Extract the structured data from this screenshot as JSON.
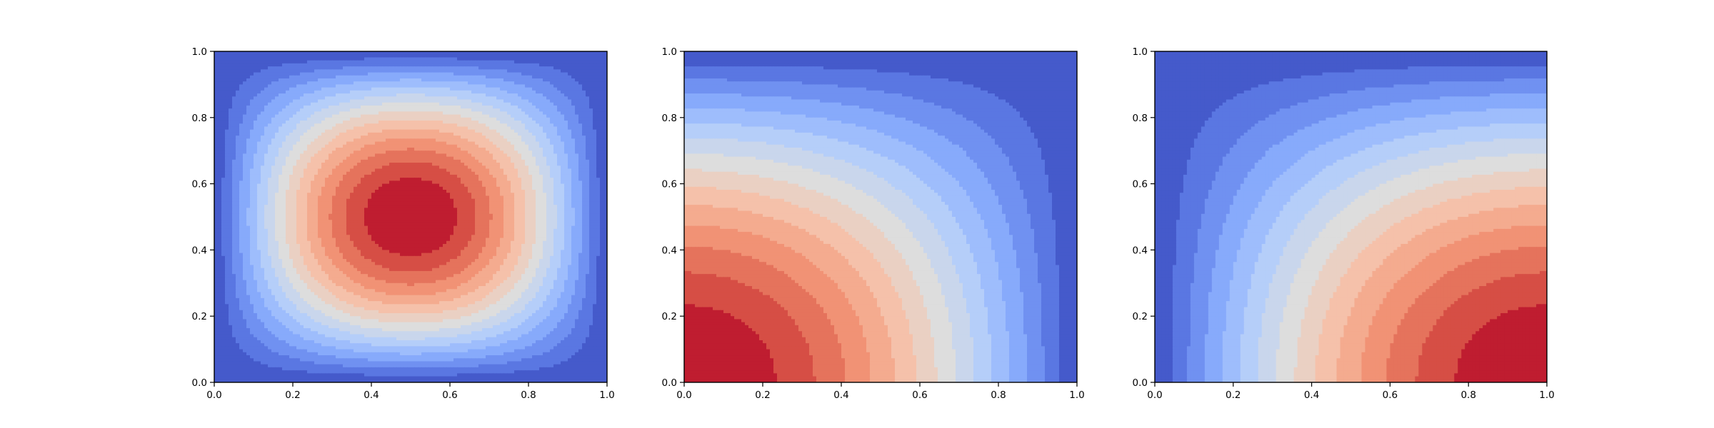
{
  "chart_data": [
    {
      "type": "heatmap",
      "subtype": "filled-contour",
      "title": "",
      "xlabel": "",
      "ylabel": "",
      "xlim": [
        0,
        1
      ],
      "ylim": [
        0,
        1
      ],
      "xticks": [
        "0.0",
        "0.2",
        "0.4",
        "0.6",
        "0.8",
        "1.0"
      ],
      "yticks": [
        "0.0",
        "0.2",
        "0.4",
        "0.6",
        "0.8",
        "1.0"
      ],
      "colormap": "coolwarm",
      "levels": 15,
      "pattern": "circular peak at center",
      "peak": [
        0.5,
        0.5
      ],
      "low_corners": [
        [
          0,
          0
        ],
        [
          0,
          1
        ],
        [
          1,
          0
        ],
        [
          1,
          1
        ]
      ],
      "grid": false
    },
    {
      "type": "heatmap",
      "subtype": "filled-contour",
      "title": "",
      "xlabel": "",
      "ylabel": "",
      "xlim": [
        0,
        1
      ],
      "ylim": [
        0,
        1
      ],
      "xticks": [
        "0.0",
        "0.2",
        "0.4",
        "0.6",
        "0.8",
        "1.0"
      ],
      "yticks": [
        "0.0",
        "0.2",
        "0.4",
        "0.6",
        "0.8",
        "1.0"
      ],
      "colormap": "coolwarm",
      "levels": 15,
      "pattern": "diagonal gradient, high at bottom-left, low at top-right",
      "peak": [
        0,
        0
      ],
      "low": [
        1,
        1
      ],
      "grid": false
    },
    {
      "type": "heatmap",
      "subtype": "filled-contour",
      "title": "",
      "xlabel": "",
      "ylabel": "",
      "xlim": [
        0,
        1
      ],
      "ylim": [
        0,
        1
      ],
      "xticks": [
        "0.0",
        "0.2",
        "0.4",
        "0.6",
        "0.8",
        "1.0"
      ],
      "yticks": [
        "0.0",
        "0.2",
        "0.4",
        "0.6",
        "0.8",
        "1.0"
      ],
      "colormap": "coolwarm",
      "levels": 15,
      "pattern": "diagonal gradient, high at bottom-right, low at top-left",
      "peak": [
        1,
        0
      ],
      "low": [
        0,
        1
      ],
      "grid": false
    }
  ]
}
